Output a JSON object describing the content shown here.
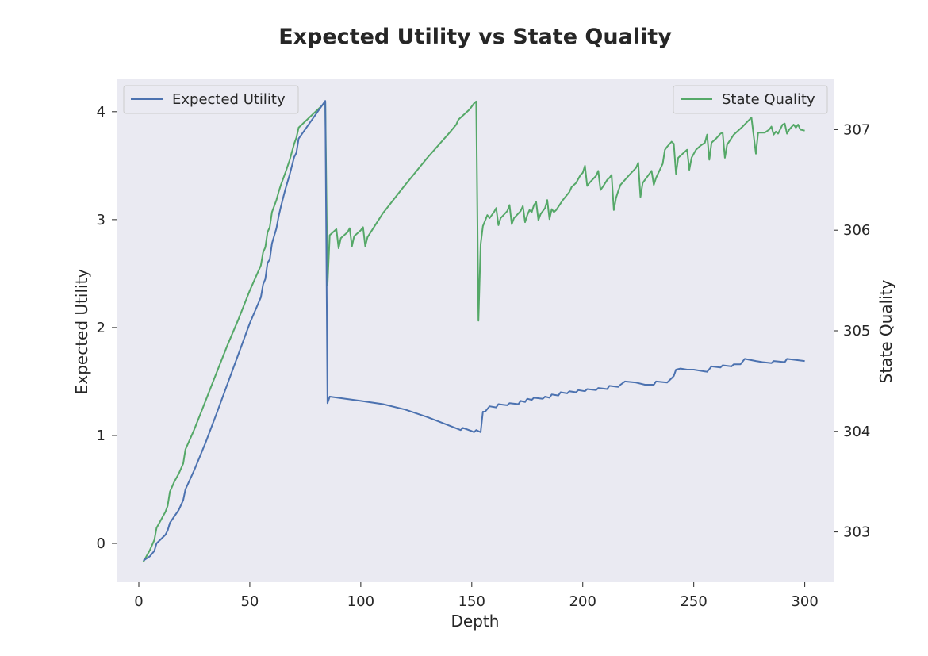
{
  "chart_data": {
    "type": "line",
    "title": "Expected Utility vs State Quality",
    "xlabel": "Depth",
    "ylabel_left": "Expected Utility",
    "ylabel_right": "State Quality",
    "xlim": [
      -10,
      313
    ],
    "ylim_left": [
      -0.36,
      4.3
    ],
    "ylim_right": [
      302.5,
      307.5
    ],
    "xticks": [
      0,
      50,
      100,
      150,
      200,
      250,
      300
    ],
    "yticks_left": [
      0,
      1,
      2,
      3,
      4
    ],
    "yticks_right": [
      303,
      304,
      305,
      306,
      307
    ],
    "grid": false,
    "background": "#eaeaf2",
    "series": [
      {
        "name": "Expected Utility",
        "axis": "left",
        "color": "#4c72b0",
        "legend_position": "top-left",
        "points": [
          [
            2,
            -0.16
          ],
          [
            5,
            -0.12
          ],
          [
            7,
            -0.07
          ],
          [
            8,
            0.0
          ],
          [
            10,
            0.04
          ],
          [
            12,
            0.08
          ],
          [
            13,
            0.12
          ],
          [
            14,
            0.19
          ],
          [
            16,
            0.25
          ],
          [
            18,
            0.31
          ],
          [
            20,
            0.4
          ],
          [
            21,
            0.5
          ],
          [
            25,
            0.68
          ],
          [
            30,
            0.93
          ],
          [
            35,
            1.2
          ],
          [
            40,
            1.48
          ],
          [
            45,
            1.76
          ],
          [
            50,
            2.04
          ],
          [
            55,
            2.28
          ],
          [
            56,
            2.4
          ],
          [
            57,
            2.45
          ],
          [
            58,
            2.6
          ],
          [
            59,
            2.63
          ],
          [
            60,
            2.78
          ],
          [
            62,
            2.92
          ],
          [
            63,
            3.03
          ],
          [
            64,
            3.12
          ],
          [
            66,
            3.28
          ],
          [
            68,
            3.42
          ],
          [
            70,
            3.58
          ],
          [
            71,
            3.62
          ],
          [
            72,
            3.75
          ],
          [
            84,
            4.1
          ],
          [
            85,
            1.3
          ],
          [
            86,
            1.36
          ],
          [
            100,
            1.32
          ],
          [
            110,
            1.29
          ],
          [
            120,
            1.24
          ],
          [
            130,
            1.17
          ],
          [
            140,
            1.09
          ],
          [
            145,
            1.05
          ],
          [
            146,
            1.07
          ],
          [
            150,
            1.04
          ],
          [
            151,
            1.03
          ],
          [
            152,
            1.05
          ],
          [
            154,
            1.03
          ],
          [
            155,
            1.22
          ],
          [
            156,
            1.22
          ],
          [
            158,
            1.27
          ],
          [
            161,
            1.26
          ],
          [
            162,
            1.29
          ],
          [
            166,
            1.28
          ],
          [
            167,
            1.3
          ],
          [
            171,
            1.29
          ],
          [
            172,
            1.32
          ],
          [
            174,
            1.31
          ],
          [
            175,
            1.34
          ],
          [
            177,
            1.33
          ],
          [
            178,
            1.35
          ],
          [
            182,
            1.34
          ],
          [
            183,
            1.36
          ],
          [
            185,
            1.35
          ],
          [
            186,
            1.38
          ],
          [
            189,
            1.37
          ],
          [
            190,
            1.4
          ],
          [
            193,
            1.39
          ],
          [
            194,
            1.41
          ],
          [
            197,
            1.4
          ],
          [
            198,
            1.42
          ],
          [
            201,
            1.41
          ],
          [
            202,
            1.43
          ],
          [
            206,
            1.42
          ],
          [
            207,
            1.44
          ],
          [
            211,
            1.43
          ],
          [
            212,
            1.46
          ],
          [
            216,
            1.45
          ],
          [
            217,
            1.47
          ],
          [
            219,
            1.5
          ],
          [
            224,
            1.49
          ],
          [
            228,
            1.47
          ],
          [
            232,
            1.47
          ],
          [
            233,
            1.5
          ],
          [
            238,
            1.49
          ],
          [
            240,
            1.53
          ],
          [
            241,
            1.55
          ],
          [
            242,
            1.61
          ],
          [
            244,
            1.62
          ],
          [
            247,
            1.61
          ],
          [
            250,
            1.61
          ],
          [
            256,
            1.59
          ],
          [
            258,
            1.64
          ],
          [
            262,
            1.63
          ],
          [
            263,
            1.65
          ],
          [
            267,
            1.64
          ],
          [
            268,
            1.66
          ],
          [
            271,
            1.66
          ],
          [
            273,
            1.71
          ],
          [
            278,
            1.69
          ],
          [
            281,
            1.68
          ],
          [
            285,
            1.67
          ],
          [
            286,
            1.69
          ],
          [
            291,
            1.68
          ],
          [
            292,
            1.71
          ],
          [
            300,
            1.69
          ]
        ]
      },
      {
        "name": "State Quality",
        "axis": "right",
        "color": "#55a868",
        "legend_position": "top-right",
        "points": [
          [
            2,
            302.7
          ],
          [
            5,
            302.82
          ],
          [
            7,
            302.92
          ],
          [
            8,
            303.04
          ],
          [
            10,
            303.12
          ],
          [
            12,
            303.2
          ],
          [
            13,
            303.26
          ],
          [
            14,
            303.4
          ],
          [
            16,
            303.5
          ],
          [
            18,
            303.58
          ],
          [
            20,
            303.68
          ],
          [
            21,
            303.82
          ],
          [
            25,
            304.02
          ],
          [
            30,
            304.3
          ],
          [
            35,
            304.58
          ],
          [
            40,
            304.86
          ],
          [
            45,
            305.12
          ],
          [
            50,
            305.4
          ],
          [
            55,
            305.65
          ],
          [
            56,
            305.78
          ],
          [
            57,
            305.83
          ],
          [
            58,
            305.98
          ],
          [
            59,
            306.03
          ],
          [
            60,
            306.18
          ],
          [
            62,
            306.3
          ],
          [
            63,
            306.38
          ],
          [
            64,
            306.45
          ],
          [
            66,
            306.57
          ],
          [
            68,
            306.7
          ],
          [
            70,
            306.86
          ],
          [
            71,
            306.92
          ],
          [
            72,
            307.02
          ],
          [
            84,
            307.27
          ],
          [
            85,
            305.45
          ],
          [
            86,
            305.95
          ],
          [
            89,
            306.01
          ],
          [
            90,
            305.82
          ],
          [
            91,
            305.92
          ],
          [
            94,
            305.98
          ],
          [
            95,
            306.02
          ],
          [
            96,
            305.84
          ],
          [
            97,
            305.94
          ],
          [
            100,
            306.0
          ],
          [
            101,
            306.03
          ],
          [
            102,
            305.84
          ],
          [
            103,
            305.93
          ],
          [
            110,
            306.17
          ],
          [
            120,
            306.45
          ],
          [
            130,
            306.72
          ],
          [
            140,
            306.97
          ],
          [
            143,
            307.05
          ],
          [
            144,
            307.1
          ],
          [
            149,
            307.2
          ],
          [
            151,
            307.26
          ],
          [
            152,
            307.28
          ],
          [
            153,
            305.1
          ],
          [
            154,
            305.86
          ],
          [
            155,
            306.04
          ],
          [
            157,
            306.15
          ],
          [
            158,
            306.12
          ],
          [
            159,
            306.15
          ],
          [
            160,
            306.18
          ],
          [
            161,
            306.22
          ],
          [
            162,
            306.05
          ],
          [
            163,
            306.12
          ],
          [
            166,
            306.19
          ],
          [
            167,
            306.25
          ],
          [
            168,
            306.06
          ],
          [
            169,
            306.12
          ],
          [
            172,
            306.19
          ],
          [
            173,
            306.24
          ],
          [
            174,
            306.08
          ],
          [
            175,
            306.15
          ],
          [
            176,
            306.2
          ],
          [
            177,
            306.18
          ],
          [
            178,
            306.25
          ],
          [
            179,
            306.28
          ],
          [
            180,
            306.1
          ],
          [
            181,
            306.16
          ],
          [
            183,
            306.22
          ],
          [
            184,
            306.3
          ],
          [
            185,
            306.11
          ],
          [
            186,
            306.21
          ],
          [
            187,
            306.18
          ],
          [
            188,
            306.2
          ],
          [
            191,
            306.3
          ],
          [
            194,
            306.38
          ],
          [
            195,
            306.43
          ],
          [
            197,
            306.47
          ],
          [
            199,
            306.55
          ],
          [
            200,
            306.57
          ],
          [
            201,
            306.64
          ],
          [
            202,
            306.44
          ],
          [
            203,
            306.47
          ],
          [
            206,
            306.54
          ],
          [
            207,
            306.59
          ],
          [
            208,
            306.4
          ],
          [
            209,
            306.43
          ],
          [
            211,
            306.5
          ],
          [
            212,
            306.52
          ],
          [
            213,
            306.55
          ],
          [
            214,
            306.2
          ],
          [
            215,
            306.32
          ],
          [
            216,
            306.39
          ],
          [
            217,
            306.45
          ],
          [
            221,
            306.55
          ],
          [
            224,
            306.62
          ],
          [
            225,
            306.67
          ],
          [
            226,
            306.33
          ],
          [
            227,
            306.47
          ],
          [
            230,
            306.56
          ],
          [
            231,
            306.59
          ],
          [
            232,
            306.45
          ],
          [
            233,
            306.52
          ],
          [
            236,
            306.66
          ],
          [
            237,
            306.8
          ],
          [
            238,
            306.83
          ],
          [
            240,
            306.88
          ],
          [
            241,
            306.86
          ],
          [
            242,
            306.56
          ],
          [
            243,
            306.72
          ],
          [
            247,
            306.8
          ],
          [
            248,
            306.6
          ],
          [
            249,
            306.72
          ],
          [
            251,
            306.8
          ],
          [
            253,
            306.84
          ],
          [
            255,
            306.87
          ],
          [
            256,
            306.95
          ],
          [
            257,
            306.7
          ],
          [
            258,
            306.87
          ],
          [
            260,
            306.91
          ],
          [
            262,
            306.96
          ],
          [
            263,
            306.97
          ],
          [
            264,
            306.72
          ],
          [
            265,
            306.85
          ],
          [
            268,
            306.95
          ],
          [
            272,
            307.03
          ],
          [
            276,
            307.12
          ],
          [
            278,
            306.76
          ],
          [
            279,
            306.97
          ],
          [
            282,
            306.97
          ],
          [
            284,
            307.0
          ],
          [
            285,
            307.03
          ],
          [
            286,
            306.95
          ],
          [
            287,
            306.98
          ],
          [
            288,
            306.96
          ],
          [
            290,
            307.05
          ],
          [
            291,
            307.06
          ],
          [
            292,
            306.96
          ],
          [
            293,
            307.0
          ],
          [
            295,
            307.05
          ],
          [
            296,
            307.02
          ],
          [
            297,
            307.05
          ],
          [
            298,
            307.0
          ],
          [
            300,
            306.99
          ]
        ]
      }
    ]
  }
}
